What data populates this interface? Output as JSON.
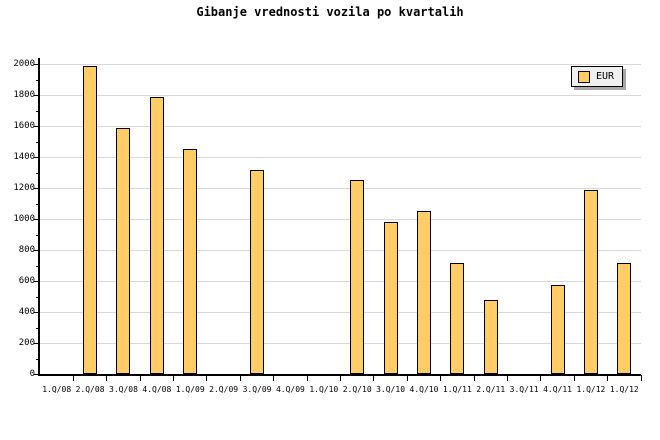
{
  "title": "Gibanje vrednosti vozila po kvartalih",
  "legend": {
    "label": "EUR",
    "swatch_color": "#FFCC66",
    "background": "#F0F0F0",
    "shadow_color": "#A8A8A8",
    "position": "top-right"
  },
  "colors": {
    "background": "#FFFFFF",
    "bar_fill": "#FFCC66",
    "bar_border": "#000000",
    "grid": "#D8D8D8",
    "axis": "#000000",
    "text": "#000000"
  },
  "chart_data": {
    "type": "bar",
    "title": "Gibanje vrednosti vozila po kvartalih",
    "xlabel": "",
    "ylabel": "",
    "categories": [
      "1.Q/08",
      "2.Q/08",
      "3.Q/08",
      "4.Q/08",
      "1.Q/09",
      "2.Q/09",
      "3.Q/09",
      "4.Q/09",
      "1.Q/10",
      "2.Q/10",
      "3.Q/10",
      "4.Q/10",
      "1.Q/11",
      "2.Q/11",
      "3.Q/11",
      "4.Q/11",
      "1.Q/12",
      "1.Q/12"
    ],
    "series": [
      {
        "name": "EUR",
        "values": [
          null,
          1990,
          1590,
          1790,
          1455,
          null,
          1320,
          null,
          null,
          1255,
          985,
          1055,
          720,
          480,
          null,
          580,
          1190,
          720
        ]
      }
    ],
    "ylim": [
      0,
      2000
    ],
    "y_ticks": [
      0,
      200,
      400,
      600,
      800,
      1000,
      1200,
      1400,
      1600,
      1800,
      2000
    ],
    "y_minor_step": 100,
    "grid": "horizontal-major",
    "legend_position": "top-right"
  }
}
